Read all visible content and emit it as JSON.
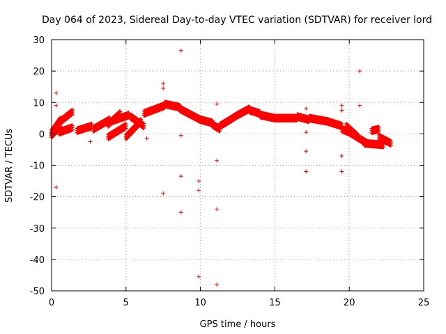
{
  "chart_data": {
    "type": "scatter",
    "title": "Day 064 of 2023, Sidereal Day-to-day VTEC variation (SDTVAR) for receiver lord",
    "xlabel": "GPS time / hours",
    "ylabel": "SDTVAR / TECUs",
    "xlim": [
      0,
      25
    ],
    "ylim": [
      -50,
      30
    ],
    "xticks": [
      0,
      5,
      10,
      15,
      20,
      25
    ],
    "yticks": [
      -50,
      -40,
      -30,
      -20,
      -10,
      0,
      10,
      20,
      30
    ],
    "grid": true,
    "marker": "+",
    "color": "#ff0000",
    "dense_segments": [
      {
        "x0": 0.0,
        "x1": 0.6,
        "y0": 0.5,
        "y1": 4.5
      },
      {
        "x0": 0.0,
        "x1": 0.6,
        "y0": -0.5,
        "y1": 2.5
      },
      {
        "x0": 0.6,
        "x1": 1.4,
        "y0": 4.0,
        "y1": 7.0
      },
      {
        "x0": 0.5,
        "x1": 1.4,
        "y0": 0.5,
        "y1": 2.0
      },
      {
        "x0": 1.7,
        "x1": 2.7,
        "y0": 1.0,
        "y1": 2.5
      },
      {
        "x0": 2.8,
        "x1": 3.9,
        "y0": 1.5,
        "y1": 4.5
      },
      {
        "x0": 3.8,
        "x1": 4.6,
        "y0": 3.0,
        "y1": 6.5
      },
      {
        "x0": 4.0,
        "x1": 5.2,
        "y0": 4.0,
        "y1": 6.0
      },
      {
        "x0": 3.8,
        "x1": 5.0,
        "y0": -1.0,
        "y1": 2.5
      },
      {
        "x0": 5.3,
        "x1": 6.2,
        "y0": 5.5,
        "y1": 2.5
      },
      {
        "x0": 5.0,
        "x1": 6.0,
        "y0": -1.0,
        "y1": 4.0
      },
      {
        "x0": 6.2,
        "x1": 7.6,
        "y0": 6.5,
        "y1": 9.0
      },
      {
        "x0": 7.6,
        "x1": 8.6,
        "y0": 9.5,
        "y1": 8.5
      },
      {
        "x0": 8.6,
        "x1": 9.2,
        "y0": 8.0,
        "y1": 6.5
      },
      {
        "x0": 9.2,
        "x1": 10.0,
        "y0": 6.5,
        "y1": 4.5
      },
      {
        "x0": 10.0,
        "x1": 10.8,
        "y0": 4.5,
        "y1": 3.5
      },
      {
        "x0": 10.8,
        "x1": 11.3,
        "y0": 3.0,
        "y1": 1.5
      },
      {
        "x0": 11.3,
        "x1": 12.0,
        "y0": 2.5,
        "y1": 4.5
      },
      {
        "x0": 12.0,
        "x1": 12.5,
        "y0": 4.5,
        "y1": 6.0
      },
      {
        "x0": 12.5,
        "x1": 13.3,
        "y0": 6.0,
        "y1": 8.0
      },
      {
        "x0": 13.3,
        "x1": 14.0,
        "y0": 7.5,
        "y1": 6.5
      },
      {
        "x0": 14.0,
        "x1": 15.0,
        "y0": 6.0,
        "y1": 5.0
      },
      {
        "x0": 15.0,
        "x1": 16.5,
        "y0": 5.0,
        "y1": 5.0
      },
      {
        "x0": 16.5,
        "x1": 17.3,
        "y0": 5.5,
        "y1": 4.5
      },
      {
        "x0": 17.3,
        "x1": 18.5,
        "y0": 5.0,
        "y1": 4.0
      },
      {
        "x0": 18.5,
        "x1": 19.5,
        "y0": 4.0,
        "y1": 2.5
      },
      {
        "x0": 19.5,
        "x1": 20.0,
        "y0": 1.5,
        "y1": 0.5
      },
      {
        "x0": 19.8,
        "x1": 20.5,
        "y0": 2.5,
        "y1": -0.5
      },
      {
        "x0": 20.0,
        "x1": 21.2,
        "y0": 0.5,
        "y1": -3.0
      },
      {
        "x0": 21.0,
        "x1": 22.3,
        "y0": -3.0,
        "y1": -3.5
      },
      {
        "x0": 21.5,
        "x1": 22.0,
        "y0": 1.0,
        "y1": 1.5
      },
      {
        "x0": 22.0,
        "x1": 22.8,
        "y0": -1.0,
        "y1": -3.0
      }
    ],
    "outliers": [
      {
        "x": 0.3,
        "y": 13.0
      },
      {
        "x": 0.3,
        "y": 9.0
      },
      {
        "x": 0.3,
        "y": -17.0
      },
      {
        "x": 2.6,
        "y": -2.5
      },
      {
        "x": 6.4,
        "y": -1.5
      },
      {
        "x": 7.5,
        "y": 16.0
      },
      {
        "x": 7.5,
        "y": 14.5
      },
      {
        "x": 7.5,
        "y": -19.0
      },
      {
        "x": 8.7,
        "y": 26.5
      },
      {
        "x": 8.7,
        "y": -0.5
      },
      {
        "x": 8.7,
        "y": -13.5
      },
      {
        "x": 8.7,
        "y": -25.0
      },
      {
        "x": 9.9,
        "y": -15.0
      },
      {
        "x": 9.9,
        "y": -18.0
      },
      {
        "x": 9.9,
        "y": -45.5
      },
      {
        "x": 11.1,
        "y": 9.5
      },
      {
        "x": 11.1,
        "y": -8.5
      },
      {
        "x": 11.1,
        "y": -24.0
      },
      {
        "x": 11.1,
        "y": -48.0
      },
      {
        "x": 17.1,
        "y": 8.0
      },
      {
        "x": 17.1,
        "y": 0.5
      },
      {
        "x": 17.1,
        "y": -5.5
      },
      {
        "x": 17.1,
        "y": -12.0
      },
      {
        "x": 19.5,
        "y": 9.0
      },
      {
        "x": 19.5,
        "y": 7.5
      },
      {
        "x": 19.5,
        "y": -7.0
      },
      {
        "x": 19.5,
        "y": -12.0
      },
      {
        "x": 20.7,
        "y": 20.0
      },
      {
        "x": 20.7,
        "y": 9.0
      }
    ]
  }
}
